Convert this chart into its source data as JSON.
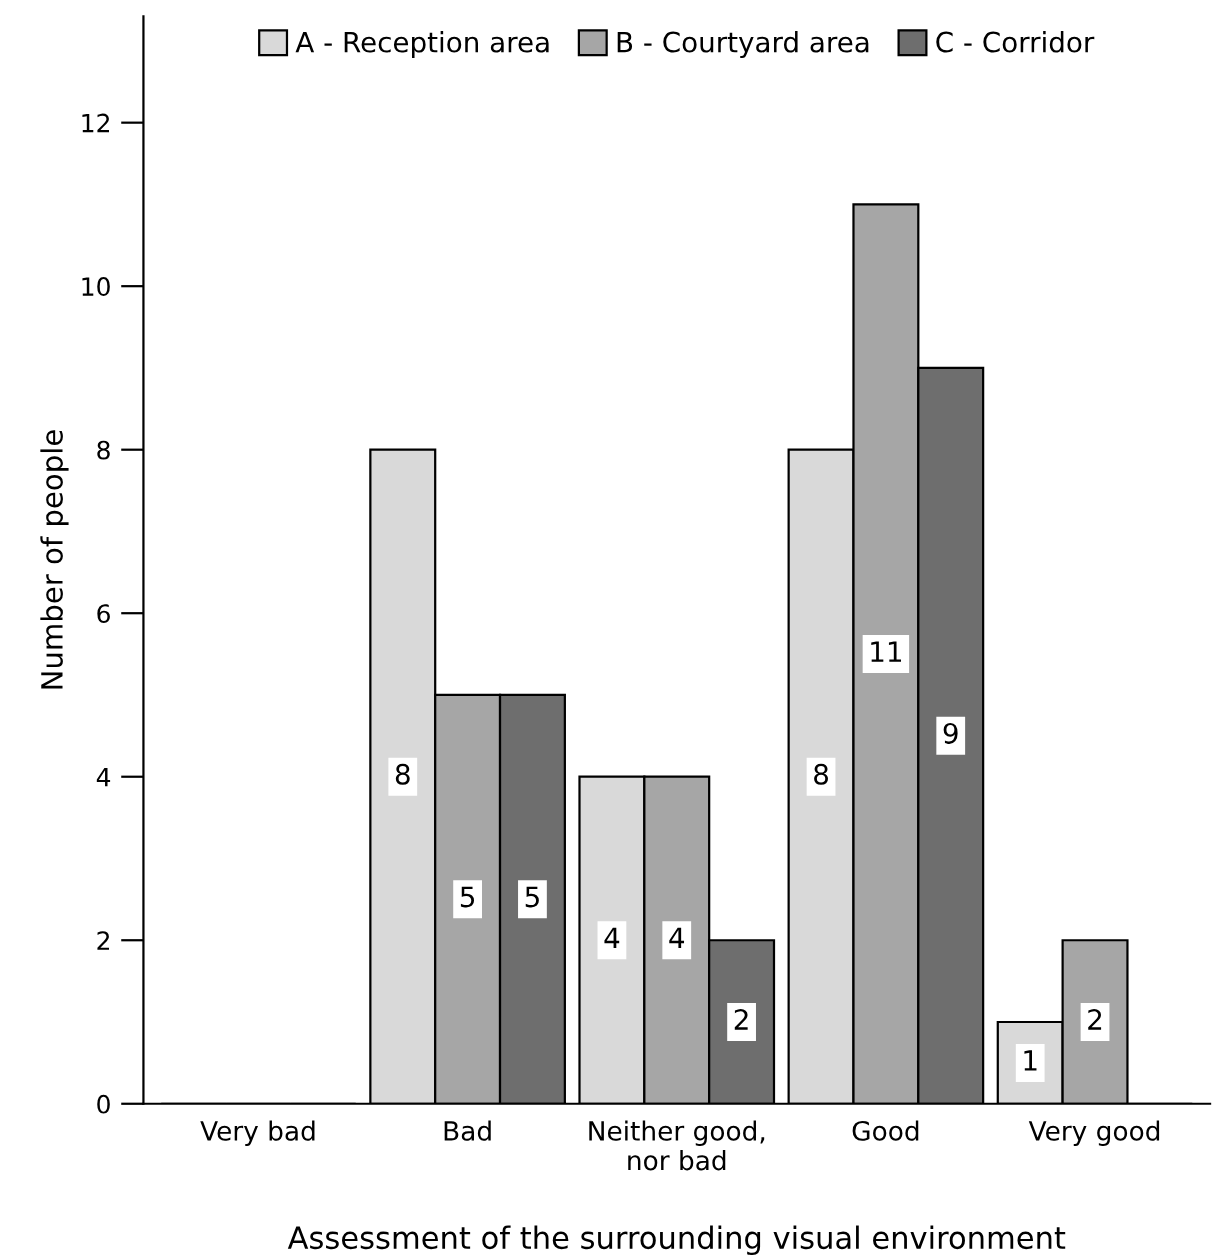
{
  "chart_data": {
    "type": "bar",
    "xlabel": "Assessment of the surrounding visual environment",
    "ylabel": "Number of people",
    "categories": [
      "Very bad",
      "Bad",
      "Neither good,\nnor bad",
      "Good",
      "Very good"
    ],
    "series": [
      {
        "name": "A - Reception area",
        "color": "#d9d9d9",
        "values": [
          0,
          8,
          4,
          8,
          1
        ],
        "value_labels": [
          null,
          "8",
          "4",
          "8",
          "1"
        ]
      },
      {
        "name": "B - Courtyard area",
        "color": "#a6a6a6",
        "values": [
          0,
          5,
          4,
          11,
          2
        ],
        "value_labels": [
          null,
          "5",
          "4",
          "11",
          "2"
        ]
      },
      {
        "name": "C - Corridor",
        "color": "#6e6e6e",
        "values": [
          0,
          5,
          2,
          9,
          0
        ],
        "value_labels": [
          null,
          "5",
          "2",
          "9",
          null
        ]
      }
    ],
    "ylim": [
      0,
      13.3
    ],
    "yticks": [
      0,
      2,
      4,
      6,
      8,
      10,
      12
    ],
    "grid": false,
    "legend": "top"
  }
}
